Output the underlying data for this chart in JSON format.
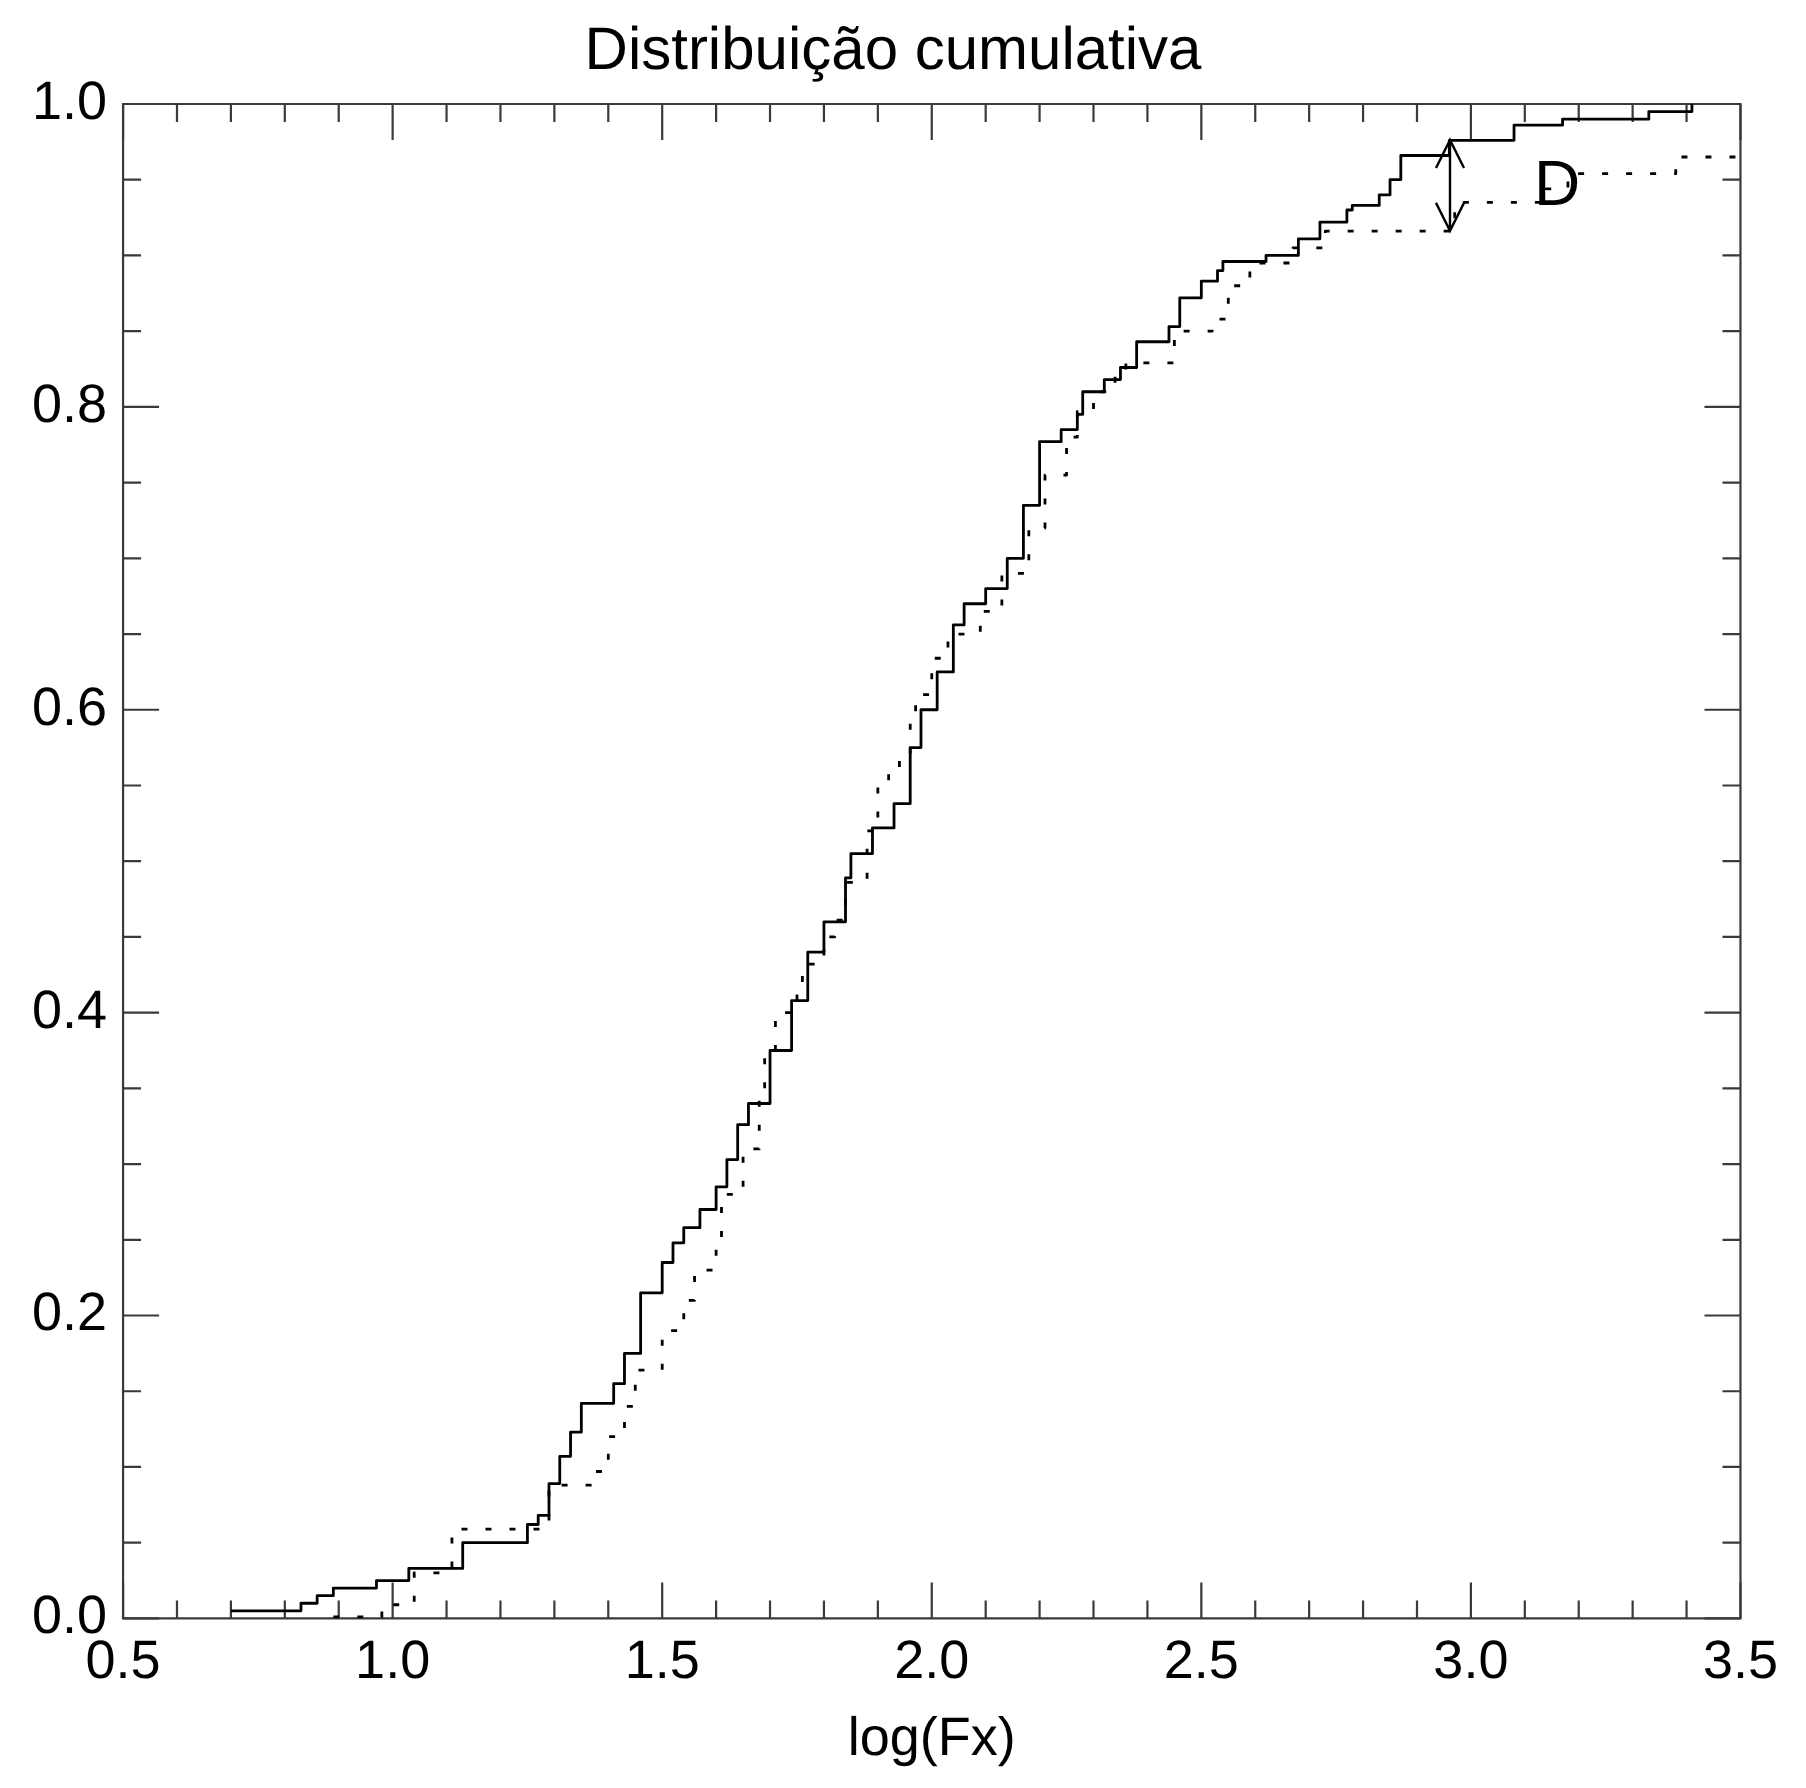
{
  "chart_data": {
    "type": "step",
    "title": "Distribuição cumulativa",
    "xlabel": "log(Fx)",
    "annotations": [
      {
        "text": "D",
        "x": 3.16,
        "y": 0.945
      }
    ],
    "xlim": [
      0.5,
      3.5
    ],
    "xticks": [
      {
        "value": 0.5,
        "label": "0.5"
      },
      {
        "value": 0.6,
        "label": null
      },
      {
        "value": 0.7,
        "label": null
      },
      {
        "value": 0.8,
        "label": null
      },
      {
        "value": 0.9,
        "label": null
      },
      {
        "value": 1.0,
        "label": "1.0"
      },
      {
        "value": 1.1,
        "label": null
      },
      {
        "value": 1.2,
        "label": null
      },
      {
        "value": 1.3,
        "label": null
      },
      {
        "value": 1.4,
        "label": null
      },
      {
        "value": 1.5,
        "label": "1.5"
      },
      {
        "value": 1.6,
        "label": null
      },
      {
        "value": 1.7,
        "label": null
      },
      {
        "value": 1.8,
        "label": null
      },
      {
        "value": 1.9,
        "label": null
      },
      {
        "value": 2.0,
        "label": "2.0"
      },
      {
        "value": 2.1,
        "label": null
      },
      {
        "value": 2.2,
        "label": null
      },
      {
        "value": 2.3,
        "label": null
      },
      {
        "value": 2.4,
        "label": null
      },
      {
        "value": 2.5,
        "label": "2.5"
      },
      {
        "value": 2.6,
        "label": null
      },
      {
        "value": 2.7,
        "label": null
      },
      {
        "value": 2.8,
        "label": null
      },
      {
        "value": 2.9,
        "label": null
      },
      {
        "value": 3.0,
        "label": "3.0"
      },
      {
        "value": 3.1,
        "label": null
      },
      {
        "value": 3.2,
        "label": null
      },
      {
        "value": 3.3,
        "label": null
      },
      {
        "value": 3.4,
        "label": null
      },
      {
        "value": 3.5,
        "label": "3.5"
      }
    ],
    "ylim": [
      0,
      1
    ],
    "yticks": [
      {
        "value": 0,
        "label": "0.0"
      },
      {
        "value": 0.05,
        "label": null
      },
      {
        "value": 0.1,
        "label": null
      },
      {
        "value": 0.15,
        "label": null
      },
      {
        "value": 0.2,
        "label": "0.2"
      },
      {
        "value": 0.25,
        "label": null
      },
      {
        "value": 0.3,
        "label": null
      },
      {
        "value": 0.35,
        "label": null
      },
      {
        "value": 0.4,
        "label": "0.4"
      },
      {
        "value": 0.45,
        "label": null
      },
      {
        "value": 0.5,
        "label": null
      },
      {
        "value": 0.55,
        "label": null
      },
      {
        "value": 0.6,
        "label": "0.6"
      },
      {
        "value": 0.65,
        "label": null
      },
      {
        "value": 0.7,
        "label": null
      },
      {
        "value": 0.75,
        "label": null
      },
      {
        "value": 0.8,
        "label": "0.8"
      },
      {
        "value": 0.85,
        "label": null
      },
      {
        "value": 0.9,
        "label": null
      },
      {
        "value": 0.95,
        "label": null
      },
      {
        "value": 1.0,
        "label": "1.0"
      }
    ],
    "grid": false,
    "legend": false,
    "series": [
      {
        "color": "#000000",
        "line_style": "solid",
        "x": [
          0.7,
          0.83,
          0.86,
          0.89,
          0.97,
          1.03,
          1.13,
          1.25,
          1.27,
          1.29,
          1.31,
          1.33,
          1.35,
          1.41,
          1.43,
          1.46,
          1.5,
          1.52,
          1.54,
          1.57,
          1.6,
          1.62,
          1.64,
          1.66,
          1.7,
          1.74,
          1.77,
          1.8,
          1.84,
          1.85,
          1.89,
          1.93,
          1.96,
          1.98,
          2.01,
          2.04,
          2.06,
          2.1,
          2.14,
          2.17,
          2.2,
          2.24,
          2.27,
          2.28,
          2.32,
          2.35,
          2.38,
          2.44,
          2.46,
          2.5,
          2.53,
          2.54,
          2.62,
          2.68,
          2.72,
          2.77,
          2.78,
          2.83,
          2.85,
          2.87,
          2.96,
          3.08,
          3.17,
          3.33,
          3.41
        ],
        "values": [
          0.005,
          0.01,
          0.015,
          0.02,
          0.025,
          0.033,
          0.05,
          0.062,
          0.068,
          0.089,
          0.107,
          0.123,
          0.142,
          0.155,
          0.175,
          0.215,
          0.235,
          0.248,
          0.258,
          0.27,
          0.285,
          0.303,
          0.326,
          0.34,
          0.375,
          0.408,
          0.44,
          0.46,
          0.489,
          0.505,
          0.522,
          0.538,
          0.575,
          0.6,
          0.625,
          0.656,
          0.67,
          0.68,
          0.7,
          0.735,
          0.777,
          0.785,
          0.795,
          0.81,
          0.818,
          0.826,
          0.843,
          0.853,
          0.872,
          0.883,
          0.89,
          0.896,
          0.9,
          0.911,
          0.922,
          0.93,
          0.933,
          0.94,
          0.95,
          0.966,
          0.976,
          0.986,
          0.99,
          0.995,
          1.0
        ]
      },
      {
        "color": "#000000",
        "line_style": "dotted",
        "x": [
          0.89,
          0.98,
          1.04,
          1.11,
          1.29,
          1.37,
          1.4,
          1.43,
          1.45,
          1.5,
          1.54,
          1.56,
          1.6,
          1.61,
          1.65,
          1.68,
          1.69,
          1.71,
          1.75,
          1.76,
          1.8,
          1.82,
          1.84,
          1.88,
          1.9,
          1.92,
          1.94,
          1.96,
          1.97,
          2.0,
          2.03,
          2.09,
          2.13,
          2.18,
          2.21,
          2.25,
          2.27,
          2.3,
          2.34,
          2.36,
          2.45,
          2.52,
          2.55,
          2.59,
          2.67,
          2.73,
          2.97,
          3.14,
          3.18,
          3.38,
          3.5
        ],
        "values": [
          0.001,
          0.009,
          0.03,
          0.059,
          0.088,
          0.097,
          0.12,
          0.14,
          0.164,
          0.19,
          0.21,
          0.23,
          0.25,
          0.28,
          0.31,
          0.345,
          0.37,
          0.4,
          0.42,
          0.432,
          0.45,
          0.461,
          0.486,
          0.52,
          0.55,
          0.56,
          0.57,
          0.595,
          0.61,
          0.634,
          0.65,
          0.665,
          0.69,
          0.72,
          0.755,
          0.78,
          0.797,
          0.81,
          0.824,
          0.829,
          0.85,
          0.858,
          0.88,
          0.895,
          0.905,
          0.916,
          0.935,
          0.944,
          0.954,
          0.965,
          0.965
        ]
      }
    ]
  }
}
